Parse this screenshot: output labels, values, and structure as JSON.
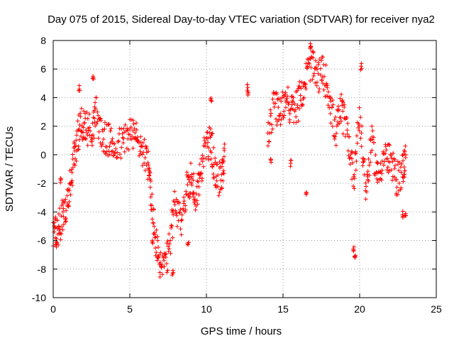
{
  "chart_data": {
    "type": "scatter",
    "title": "Day 075 of 2015, Sidereal Day-to-day VTEC variation (SDTVAR) for receiver nya2",
    "xlabel": "GPS time / hours",
    "ylabel": "SDTVAR / TECUs",
    "xlim": [
      0,
      25
    ],
    "ylim": [
      -10,
      8
    ],
    "x_ticks": [
      "0",
      "5",
      "10",
      "15",
      "20",
      "25"
    ],
    "y_ticks": [
      "-10",
      "-8",
      "-6",
      "-4",
      "-2",
      "0",
      "2",
      "4",
      "6",
      "8"
    ],
    "grid": true,
    "marker": "+",
    "color": "#ff0000",
    "series": [
      {
        "name": "SDTVAR",
        "trend": [
          [
            0.0,
            -5.2
          ],
          [
            0.3,
            -5.5
          ],
          [
            0.6,
            -4.2
          ],
          [
            0.9,
            -3.6
          ],
          [
            1.2,
            -1.5
          ],
          [
            1.5,
            0.6
          ],
          [
            1.8,
            2.3
          ],
          [
            2.1,
            2.0
          ],
          [
            2.5,
            1.6
          ],
          [
            2.8,
            3.0
          ],
          [
            3.2,
            1.2
          ],
          [
            3.6,
            1.0
          ],
          [
            4.0,
            0.6
          ],
          [
            4.5,
            0.8
          ],
          [
            5.0,
            1.6
          ],
          [
            5.4,
            1.2
          ],
          [
            5.8,
            0.5
          ],
          [
            6.2,
            -0.8
          ],
          [
            6.5,
            -4.2
          ],
          [
            6.8,
            -7.0
          ],
          [
            7.1,
            -7.9
          ],
          [
            7.5,
            -7.2
          ],
          [
            7.9,
            -3.5
          ],
          [
            8.3,
            -4.8
          ],
          [
            8.7,
            -2.4
          ],
          [
            9.0,
            -1.5
          ],
          [
            9.3,
            -3.2
          ],
          [
            9.6,
            -1.2
          ],
          [
            10.0,
            0.6
          ],
          [
            10.3,
            1.0
          ],
          [
            10.6,
            -1.8
          ],
          [
            11.0,
            -1.6
          ],
          [
            11.2,
            0.4
          ],
          [
            14.0,
            1.0
          ],
          [
            14.4,
            3.5
          ],
          [
            14.8,
            2.8
          ],
          [
            15.2,
            4.2
          ],
          [
            15.6,
            3.0
          ],
          [
            16.0,
            3.6
          ],
          [
            16.4,
            5.0
          ],
          [
            16.8,
            6.5
          ],
          [
            17.2,
            5.4
          ],
          [
            17.6,
            5.8
          ],
          [
            18.0,
            4.4
          ],
          [
            18.4,
            1.5
          ],
          [
            18.8,
            3.2
          ],
          [
            19.2,
            1.6
          ],
          [
            19.6,
            -1.5
          ],
          [
            20.0,
            2.8
          ],
          [
            20.4,
            -2.5
          ],
          [
            20.8,
            1.0
          ],
          [
            21.2,
            -1.6
          ],
          [
            21.6,
            0.0
          ],
          [
            22.0,
            -0.5
          ],
          [
            22.4,
            -1.8
          ],
          [
            22.8,
            -1.0
          ],
          [
            23.0,
            -0.2
          ]
        ],
        "clusters": [
          [
            12.7,
            4.7
          ],
          [
            12.7,
            4.4
          ],
          [
            14.2,
            -0.4
          ],
          [
            15.5,
            -0.6
          ],
          [
            16.5,
            -2.7
          ],
          [
            19.6,
            -6.6
          ],
          [
            19.7,
            -7.2
          ],
          [
            8.8,
            -6.3
          ],
          [
            7.8,
            -8.3
          ],
          [
            6.5,
            -6.2
          ],
          [
            6.3,
            -1.2
          ],
          [
            0.2,
            -6.1
          ],
          [
            0.5,
            -1.7
          ],
          [
            1.7,
            4.6
          ],
          [
            2.6,
            5.5
          ],
          [
            10.3,
            3.8
          ],
          [
            16.8,
            7.6
          ],
          [
            20.1,
            6.2
          ],
          [
            23.0,
            -4.1
          ],
          [
            22.8,
            -4.2
          ]
        ]
      }
    ]
  }
}
